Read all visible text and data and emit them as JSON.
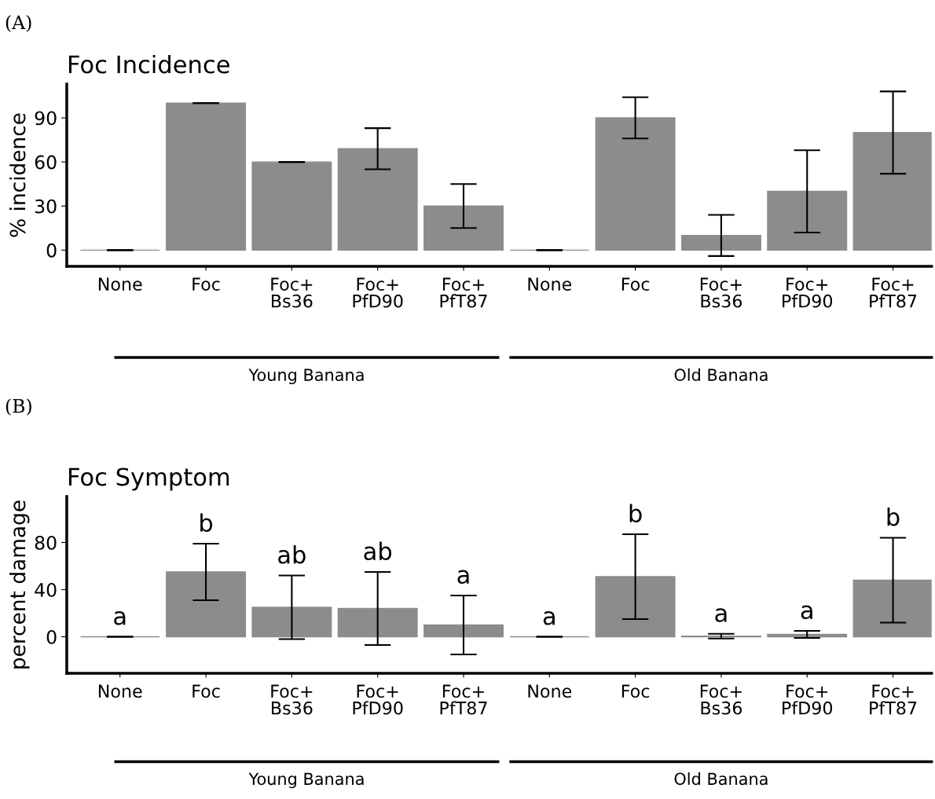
{
  "chart_data": [
    {
      "type": "bar",
      "title": "Foc Incidence",
      "ylabel": "% incidence",
      "categories": [
        "None",
        "Foc",
        "Foc+\nBs36",
        "Foc+\nPfD90",
        "Foc+\nPfT87",
        "None",
        "Foc",
        "Foc+\nBs36",
        "Foc+\nPfD90",
        "Foc+\nPfT87"
      ],
      "values": [
        0,
        100,
        60,
        69,
        30,
        0,
        90,
        10,
        40,
        80
      ],
      "errors": [
        0,
        0,
        0,
        14,
        15,
        0,
        14,
        14,
        28,
        28
      ],
      "color": "#8c8c8c",
      "ylim": [
        -11,
        113
      ],
      "yticks": [
        0,
        30,
        60,
        90
      ],
      "grid": false,
      "legend": false,
      "annotations": [
        "(A)",
        "Young Banana",
        "Old Banana"
      ]
    },
    {
      "type": "bar",
      "title": "Foc Symptom",
      "ylabel": "percent damage",
      "categories": [
        "None",
        "Foc",
        "Foc+\nBs36",
        "Foc+\nPfD90",
        "Foc+\nPfT87",
        "None",
        "Foc",
        "Foc+\nBs36",
        "Foc+\nPfD90",
        "Foc+\nPfT87"
      ],
      "values": [
        0,
        55,
        25,
        24,
        10,
        0,
        51,
        0.5,
        2,
        48
      ],
      "errors": [
        0,
        24,
        27,
        31,
        25,
        0,
        36,
        2,
        3,
        36
      ],
      "color": "#8c8c8c",
      "ylim": [
        -31,
        119
      ],
      "yticks": [
        0,
        40,
        80
      ],
      "grid": false,
      "legend": false,
      "annotations": [
        "(B)",
        "a",
        "b",
        "ab",
        "ab",
        "a",
        "a",
        "b",
        "a",
        "a",
        "b",
        "Young Banana",
        "Old Banana"
      ]
    }
  ]
}
